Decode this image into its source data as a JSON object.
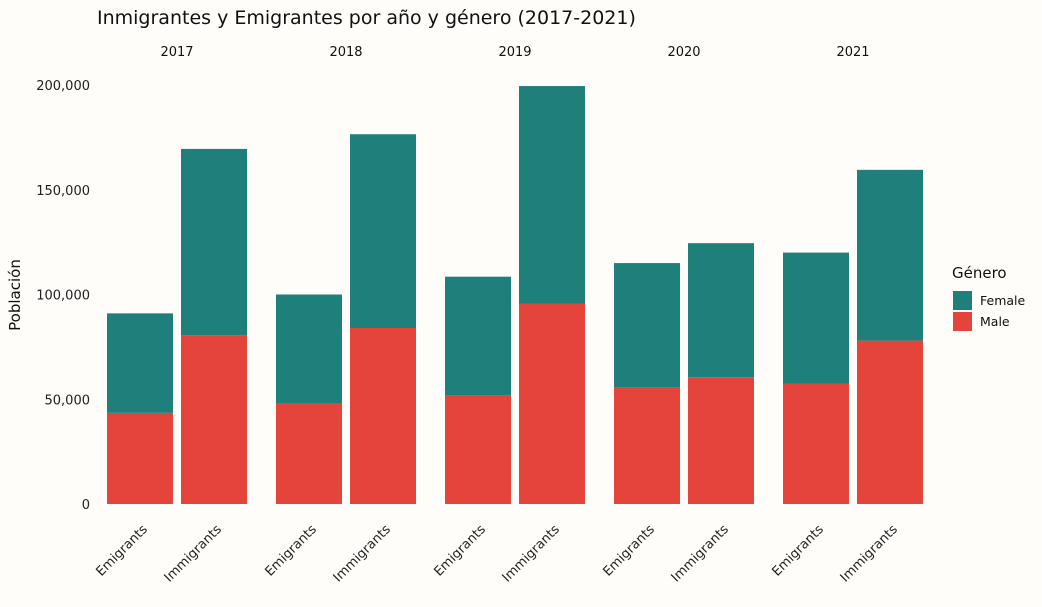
{
  "chart_data": {
    "type": "bar",
    "stacked": true,
    "title": "Inmigrantes y Emigrantes por año y género (2017-2021)",
    "ylabel": "Población",
    "xlabel": "",
    "ylim": [
      0,
      200000
    ],
    "yticks": [
      0,
      50000,
      100000,
      150000,
      200000
    ],
    "ytick_labels": [
      "0",
      "50,000",
      "100,000",
      "150,000",
      "200,000"
    ],
    "grid": false,
    "legend": {
      "title": "Género",
      "placement": "right",
      "entries": [
        {
          "name": "Female",
          "color": "#1f7f7a"
        },
        {
          "name": "Male",
          "color": "#e5443a"
        }
      ]
    },
    "facets": [
      "2017",
      "2018",
      "2019",
      "2020",
      "2021"
    ],
    "categories": [
      "Emigrants",
      "Immigrants"
    ],
    "series": [
      {
        "name": "Male",
        "color": "#e5443a",
        "values": [
          [
            43500,
            80500
          ],
          [
            48000,
            84000
          ],
          [
            52000,
            95500
          ],
          [
            55500,
            60500
          ],
          [
            57500,
            78000
          ]
        ]
      },
      {
        "name": "Female",
        "color": "#1f7f7a",
        "values": [
          [
            47500,
            89000
          ],
          [
            52000,
            92500
          ],
          [
            56500,
            104000
          ],
          [
            59500,
            64000
          ],
          [
            62500,
            81500
          ]
        ]
      }
    ]
  }
}
